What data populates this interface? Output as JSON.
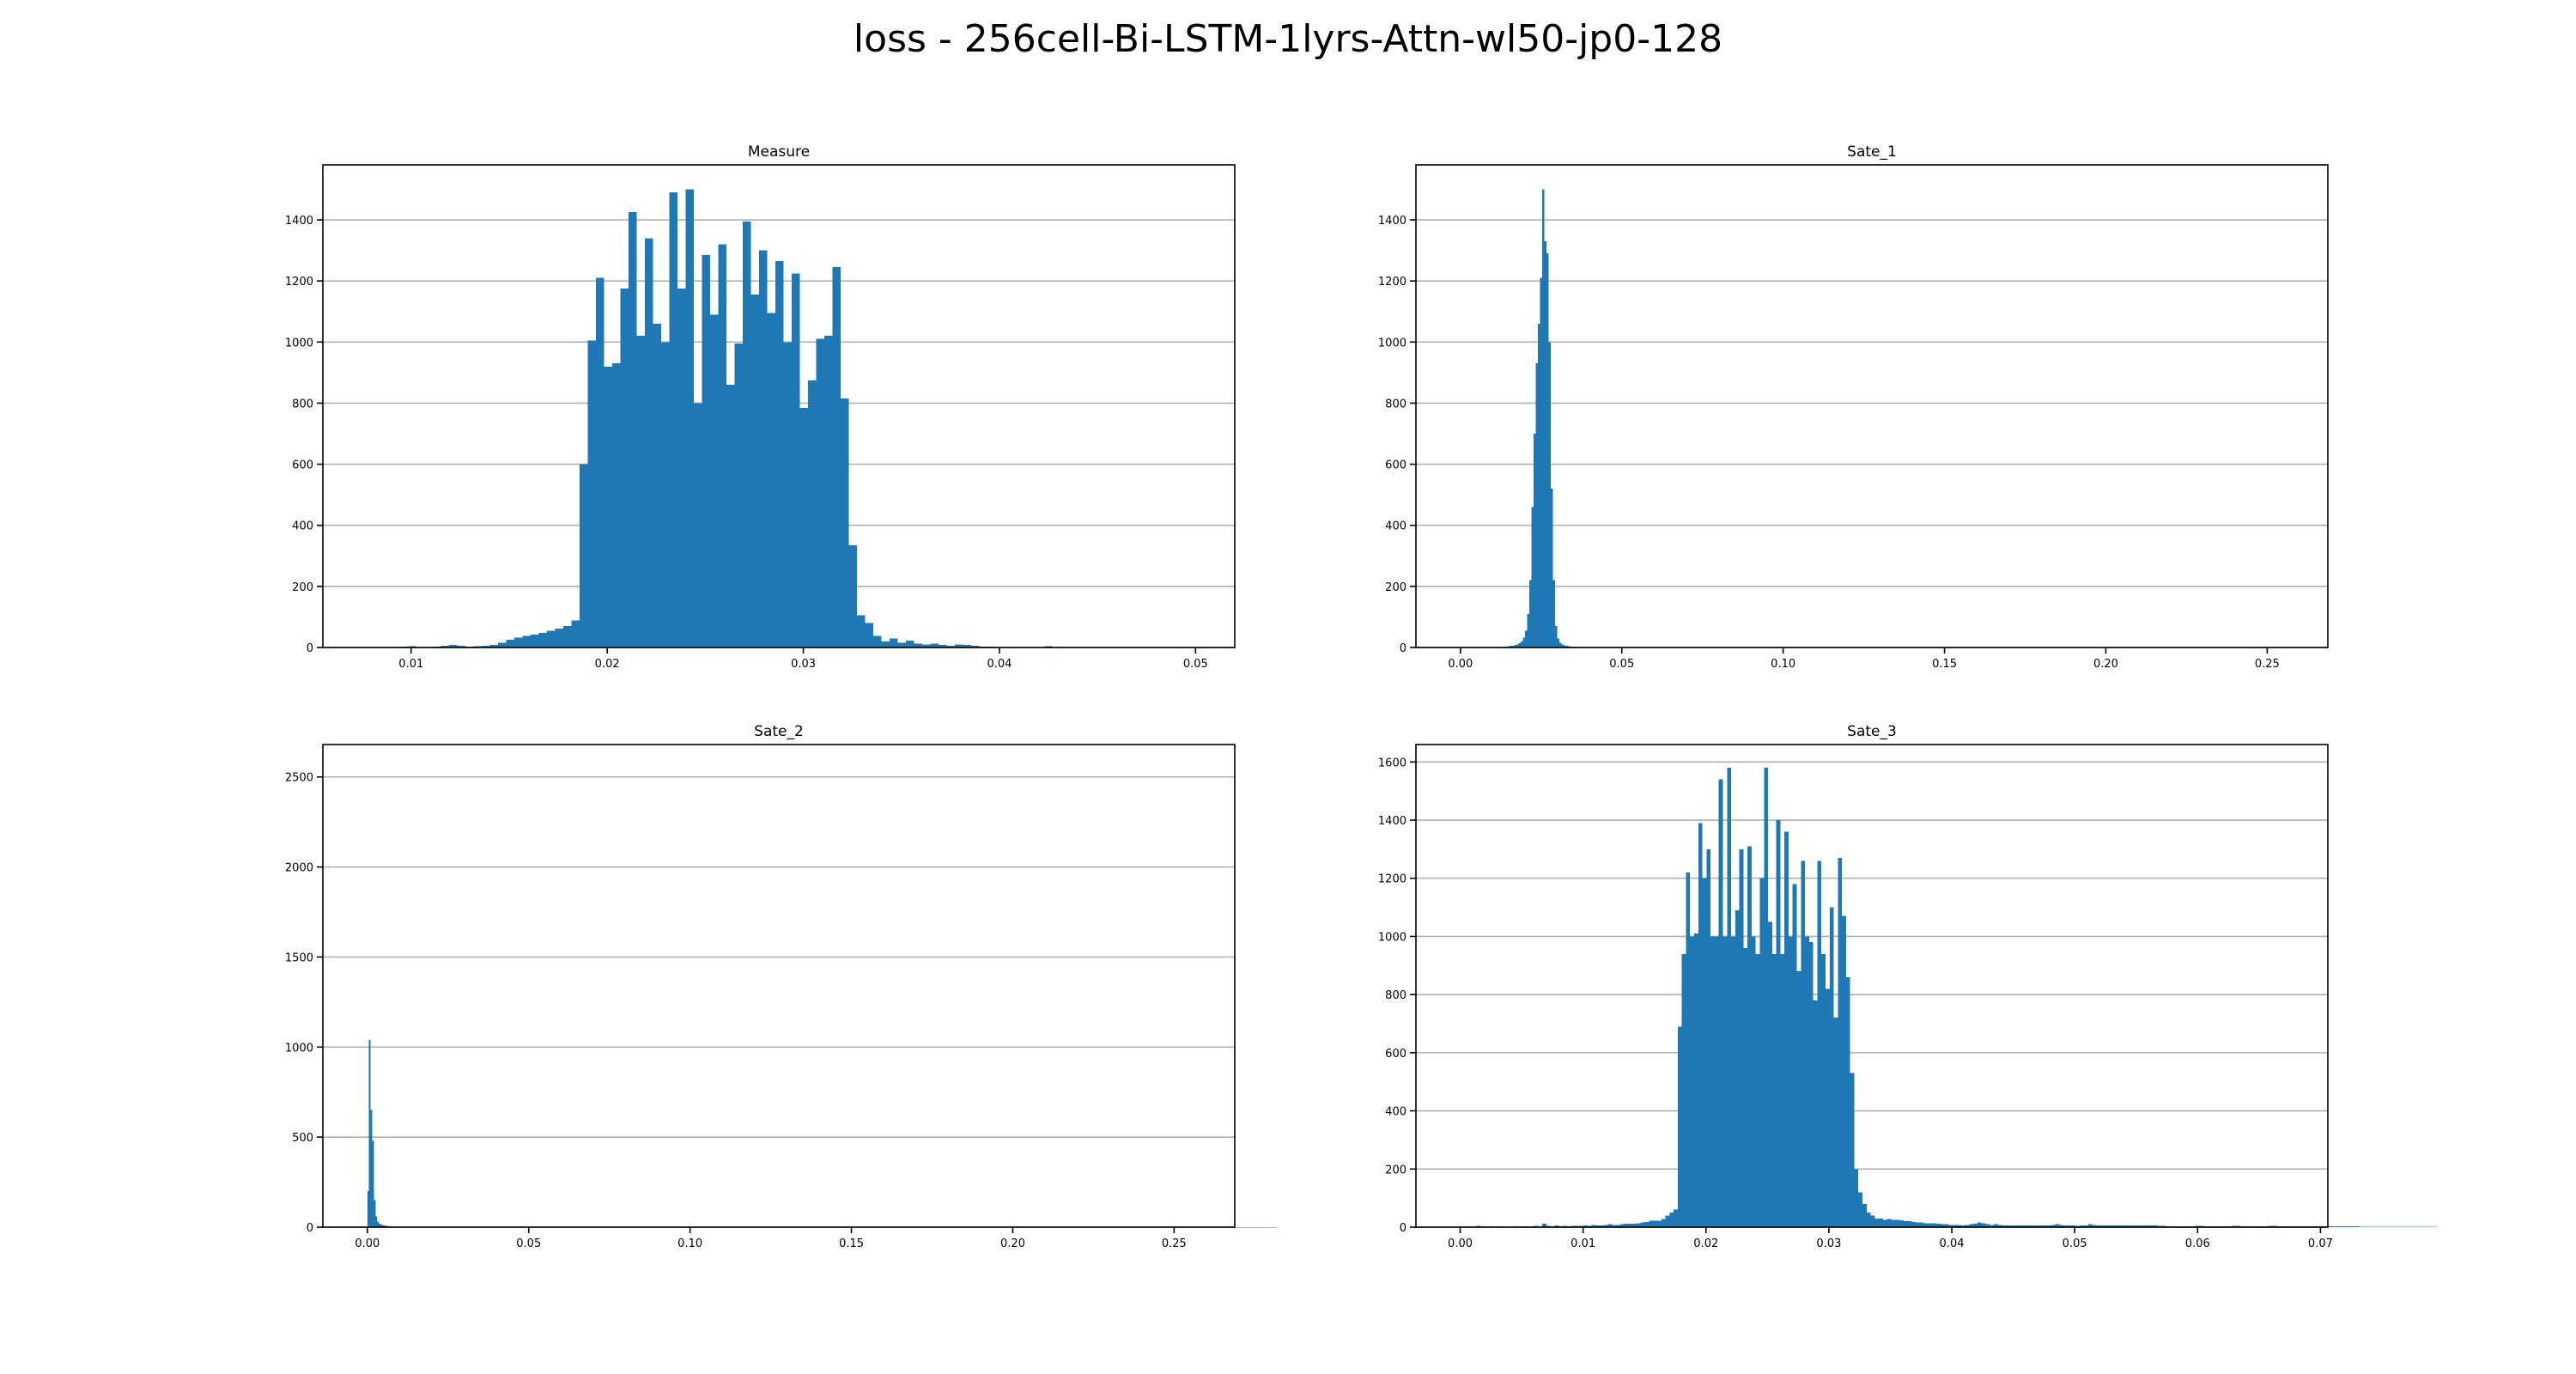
{
  "figure": {
    "title": "loss - 256cell-Bi-LSTM-1lyrs-Attn-wl50-jp0-128",
    "bar_color": "#1f77b4",
    "grid_color": "#b0b0b0"
  },
  "chart_data": [
    {
      "type": "bar",
      "title": "Measure",
      "xlabel": "",
      "ylabel": "",
      "grid": "y",
      "xlim": [
        0.0055,
        0.052
      ],
      "ylim": [
        0,
        1580
      ],
      "xticks": [
        0.01,
        0.02,
        0.03,
        0.04,
        0.05
      ],
      "xtick_labels": [
        "0.01",
        "0.02",
        "0.03",
        "0.04",
        "0.05"
      ],
      "yticks": [
        0,
        200,
        400,
        600,
        800,
        1000,
        1200,
        1400
      ],
      "ytick_labels": [
        "0",
        "200",
        "400",
        "600",
        "800",
        "1000",
        "1200",
        "1400"
      ],
      "bin_start": 0.0082,
      "bin_width": 0.000416,
      "counts": [
        1,
        2,
        2,
        3,
        4,
        2,
        2,
        3,
        5,
        8,
        6,
        3,
        4,
        5,
        8,
        15,
        25,
        32,
        38,
        42,
        48,
        55,
        62,
        70,
        88,
        600,
        1005,
        1210,
        920,
        930,
        1175,
        1425,
        1020,
        1340,
        1060,
        1000,
        1490,
        1175,
        1500,
        800,
        1285,
        1090,
        1320,
        860,
        995,
        1395,
        1155,
        1300,
        1095,
        1265,
        1000,
        1225,
        785,
        875,
        1010,
        1020,
        1245,
        815,
        335,
        105,
        80,
        38,
        20,
        30,
        15,
        22,
        12,
        10,
        12,
        8,
        6,
        10,
        8,
        6,
        3,
        3,
        2,
        2,
        2,
        2,
        1,
        1,
        4,
        2,
        2,
        2,
        1,
        1,
        1,
        1,
        1,
        0,
        0,
        0,
        0,
        0,
        0,
        0,
        0,
        0,
        0,
        0,
        0,
        0,
        0,
        0,
        0,
        0,
        0,
        0,
        0,
        0,
        0
      ]
    },
    {
      "type": "bar",
      "title": "Sate_1",
      "xlabel": "",
      "ylabel": "",
      "grid": "y",
      "xlim": [
        -0.0138,
        0.2688
      ],
      "ylim": [
        0,
        1580
      ],
      "xticks": [
        0.0,
        0.05,
        0.1,
        0.15,
        0.2,
        0.25
      ],
      "xtick_labels": [
        "0.00",
        "0.05",
        "0.10",
        "0.15",
        "0.20",
        "0.25"
      ],
      "yticks": [
        0,
        200,
        400,
        600,
        800,
        1000,
        1200,
        1400
      ],
      "ytick_labels": [
        "0",
        "200",
        "400",
        "600",
        "800",
        "1000",
        "1200",
        "1400"
      ],
      "bin_start": 0.0,
      "bin_width": 0.000665,
      "counts": [
        1,
        1,
        1,
        1,
        1,
        1,
        1,
        1,
        1,
        1,
        1,
        1,
        1,
        1,
        1,
        1,
        2,
        2,
        2,
        2,
        3,
        3,
        4,
        5,
        6,
        8,
        10,
        14,
        20,
        32,
        55,
        110,
        220,
        460,
        700,
        930,
        1060,
        1210,
        1500,
        1330,
        1290,
        1000,
        520,
        220,
        70,
        30,
        15,
        10,
        7,
        5,
        4,
        3,
        3,
        3,
        2,
        2,
        2,
        2,
        2,
        1,
        1,
        1,
        1,
        1,
        1,
        1,
        1,
        1,
        1,
        1,
        1,
        1,
        1,
        1,
        1,
        1,
        1,
        1,
        1,
        1,
        1,
        1,
        1,
        1,
        1,
        1,
        1,
        1,
        1,
        1,
        1,
        1,
        1,
        1,
        1,
        1,
        1,
        1,
        1,
        1,
        1,
        1,
        1,
        1,
        1,
        1,
        1,
        1,
        1,
        1,
        1,
        1,
        1,
        1,
        1,
        1,
        1,
        1,
        1,
        1,
        1,
        1,
        1,
        1,
        1,
        1,
        1,
        1,
        1,
        1,
        1,
        1,
        1,
        1,
        1,
        1,
        1,
        1,
        1,
        1,
        1,
        1,
        1,
        1,
        1,
        1,
        1,
        1,
        1,
        1,
        1,
        1,
        1,
        1,
        1,
        1,
        1,
        1,
        1,
        1,
        1,
        1,
        1,
        1,
        1,
        1,
        1,
        1,
        1,
        1,
        1,
        1,
        1,
        1,
        1,
        1,
        1,
        1,
        1,
        1,
        1,
        1,
        1,
        1,
        1,
        1,
        1,
        1,
        1,
        1,
        1,
        1,
        1,
        1,
        1,
        1,
        1,
        1,
        1,
        1,
        1,
        1,
        1,
        1,
        1,
        1,
        1,
        1,
        1,
        1,
        1,
        1,
        1,
        1,
        1,
        1,
        1,
        1,
        1,
        1,
        1,
        1,
        1,
        1,
        1,
        1,
        1,
        1,
        1,
        1,
        1,
        1,
        1,
        1,
        1,
        1,
        1,
        1,
        1,
        1,
        1,
        1,
        1,
        1,
        1,
        1,
        1,
        1,
        1,
        1,
        1,
        1,
        1,
        1,
        1,
        1,
        1,
        1,
        1,
        1,
        1,
        1,
        1,
        1,
        1,
        1,
        1,
        1,
        1,
        1,
        1,
        1,
        1,
        1,
        1,
        1,
        1,
        1,
        1,
        1,
        1,
        1,
        1,
        1,
        1,
        1,
        1,
        1,
        1,
        1,
        1,
        1,
        1,
        1,
        1,
        1,
        1,
        1,
        1,
        1,
        1,
        1,
        1,
        1,
        1,
        1,
        1,
        1,
        1,
        1,
        1,
        1,
        1,
        1,
        1,
        1,
        1,
        1,
        1,
        1,
        1,
        1,
        1,
        1,
        1,
        1,
        1,
        1,
        1,
        1,
        1,
        1,
        1,
        1,
        1,
        1,
        1,
        1,
        1,
        1,
        1,
        1,
        1,
        1,
        1,
        1,
        1,
        1,
        1,
        1,
        1,
        1,
        1,
        1,
        1,
        1,
        1,
        1,
        1,
        1,
        1,
        1,
        1,
        1,
        1,
        1,
        1,
        1,
        1,
        1,
        1,
        1,
        1,
        1,
        1,
        1,
        1,
        1,
        1,
        1,
        1,
        1,
        1,
        1,
        1,
        1
      ]
    },
    {
      "type": "bar",
      "title": "Sate_2",
      "xlabel": "",
      "ylabel": "",
      "grid": "y",
      "xlim": [
        -0.0138,
        0.2688
      ],
      "ylim": [
        0,
        2680
      ],
      "xticks": [
        0.0,
        0.05,
        0.1,
        0.15,
        0.2,
        0.25
      ],
      "xtick_labels": [
        "0.00",
        "0.05",
        "0.10",
        "0.15",
        "0.20",
        "0.25"
      ],
      "yticks": [
        0,
        500,
        1000,
        1500,
        2000,
        2500
      ],
      "ytick_labels": [
        "0",
        "500",
        "1000",
        "1500",
        "2000",
        "2500"
      ],
      "bin_start": 0.0,
      "bin_width": 0.0005,
      "counts": [
        200,
        1040,
        650,
        480,
        150,
        60,
        30,
        20,
        15,
        12,
        10,
        8,
        6,
        5,
        4,
        4,
        3,
        3,
        2,
        2,
        2,
        2,
        2,
        2,
        1,
        1,
        1,
        1,
        1,
        1,
        1,
        1,
        1,
        1,
        1,
        1,
        1,
        1,
        1,
        1,
        1,
        1,
        1,
        1,
        1,
        1,
        1,
        1,
        1,
        1,
        1,
        1,
        1,
        1,
        1,
        1,
        1,
        1,
        1,
        1,
        1,
        1,
        1,
        1,
        1,
        1,
        1,
        1,
        1,
        1,
        1,
        1,
        1,
        1,
        1,
        1,
        1,
        1,
        1,
        1,
        1,
        1,
        1,
        1,
        1,
        1,
        1,
        1,
        1,
        1,
        1,
        1,
        1,
        1,
        1,
        1,
        1,
        1,
        1,
        1,
        1,
        1,
        1,
        1,
        1,
        1,
        1,
        1,
        1,
        1,
        1,
        1,
        1,
        1,
        1,
        1,
        1,
        1,
        1,
        1,
        1,
        1,
        1,
        1,
        1,
        1,
        1,
        1,
        1,
        1,
        1,
        1,
        1,
        1,
        1,
        1,
        1,
        1,
        1,
        1,
        1,
        1,
        1,
        1,
        1,
        1,
        1,
        1,
        1,
        1,
        1,
        1,
        1,
        1,
        1,
        1,
        1,
        1,
        1,
        1,
        1,
        1,
        1,
        1,
        1,
        1,
        1,
        1,
        1,
        1,
        1,
        1,
        1,
        1,
        1,
        1,
        1,
        1,
        1,
        1,
        1,
        1,
        1,
        1,
        1,
        1,
        1,
        1,
        1,
        1,
        1,
        1,
        1,
        1,
        1,
        1,
        1,
        1,
        1,
        1,
        1,
        1,
        1,
        1,
        1,
        1,
        1,
        1,
        1,
        1,
        1,
        1,
        1,
        1,
        1,
        1,
        1,
        1,
        1,
        1,
        1,
        1,
        1,
        1,
        1,
        1,
        1,
        1,
        1,
        1,
        1,
        1,
        1,
        1,
        1,
        1,
        1,
        1,
        1,
        1,
        1,
        1,
        1,
        1,
        1,
        1,
        1,
        1,
        1,
        1,
        1,
        1,
        1,
        1,
        1,
        1,
        1,
        1,
        1,
        1,
        1,
        1,
        1,
        1,
        1,
        1,
        1,
        1,
        1,
        1,
        1,
        1,
        1,
        1,
        1,
        1,
        1,
        1,
        1,
        1,
        1,
        1,
        1,
        1,
        1,
        1,
        1,
        1,
        1,
        1,
        1,
        1,
        1,
        1,
        1,
        1,
        1,
        1,
        1,
        1,
        1,
        1,
        1,
        1,
        1,
        1,
        1,
        1,
        1,
        1,
        1,
        1,
        1,
        1,
        1,
        1,
        1,
        1,
        1,
        1,
        1,
        1,
        1,
        1,
        1,
        1,
        1,
        1,
        1,
        1,
        1,
        1,
        1,
        1,
        1,
        1,
        1,
        1,
        1,
        1,
        1,
        1,
        1,
        1,
        1,
        1,
        1,
        1,
        1,
        1,
        1,
        1,
        1,
        1,
        1,
        1,
        1,
        1,
        1,
        1,
        1,
        1,
        1,
        1,
        1,
        1,
        1,
        1,
        1,
        1,
        1,
        1,
        1,
        1,
        1,
        1,
        1,
        1,
        1,
        1,
        1,
        1,
        1,
        1,
        1,
        1,
        1,
        1,
        1,
        1,
        1,
        1,
        1,
        1,
        1,
        1,
        1,
        1,
        1,
        1,
        1,
        1,
        1,
        1,
        1,
        1,
        1,
        1,
        1,
        1,
        1,
        1,
        1,
        1,
        1,
        1,
        1,
        1,
        1,
        1,
        1,
        1,
        1,
        1,
        1,
        1,
        1,
        1,
        1,
        1,
        1,
        1,
        1,
        1,
        1,
        1,
        1,
        1,
        1,
        1,
        1,
        1,
        1,
        1,
        1,
        1,
        1,
        1,
        1,
        1,
        1,
        1,
        1,
        1,
        1,
        1,
        1,
        1,
        1,
        1,
        1,
        1,
        1,
        1,
        1,
        1,
        1,
        1,
        1,
        1,
        1,
        1,
        1,
        1,
        1,
        1,
        1,
        1,
        1,
        1,
        1,
        1,
        1,
        1,
        1,
        1,
        1,
        1,
        1,
        1,
        1,
        1,
        1,
        1,
        1,
        1,
        1,
        1,
        1,
        1,
        1,
        1,
        1,
        1,
        1,
        1,
        1,
        1,
        1,
        1,
        1,
        1,
        1,
        1,
        1,
        1,
        1,
        1,
        1,
        1,
        1,
        1,
        1,
        1,
        1,
        1,
        1,
        1,
        1,
        1,
        1,
        1,
        1,
        1,
        1,
        1,
        1,
        1,
        1,
        1,
        1,
        1,
        1,
        1,
        1,
        1,
        1,
        1,
        1,
        1,
        1,
        1,
        1,
        1,
        1,
        1,
        1,
        1,
        1,
        1,
        1,
        1,
        1,
        1
      ]
    },
    {
      "type": "bar",
      "title": "Sate_3",
      "xlabel": "",
      "ylabel": "",
      "grid": "y",
      "xlim": [
        -0.0036,
        0.0706
      ],
      "ylim": [
        0,
        1660
      ],
      "xticks": [
        0.0,
        0.01,
        0.02,
        0.03,
        0.04,
        0.05,
        0.06,
        0.07
      ],
      "xtick_labels": [
        "0.00",
        "0.01",
        "0.02",
        "0.03",
        "0.04",
        "0.05",
        "0.06",
        "0.07"
      ],
      "yticks": [
        0,
        200,
        400,
        600,
        800,
        1000,
        1200,
        1400,
        1600
      ],
      "ytick_labels": [
        "0",
        "200",
        "400",
        "600",
        "800",
        "1000",
        "1200",
        "1400",
        "1600"
      ],
      "bin_start": 0.0,
      "bin_width": 0.000334,
      "counts": [
        2,
        3,
        2,
        2,
        4,
        3,
        2,
        3,
        2,
        3,
        3,
        2,
        2,
        3,
        2,
        3,
        3,
        3,
        4,
        3,
        12,
        4,
        3,
        6,
        3,
        4,
        3,
        5,
        4,
        4,
        6,
        5,
        7,
        6,
        6,
        8,
        10,
        8,
        8,
        10,
        12,
        12,
        12,
        14,
        16,
        18,
        22,
        22,
        22,
        28,
        40,
        50,
        60,
        690,
        940,
        1220,
        1000,
        1010,
        1390,
        1200,
        1300,
        1000,
        1000,
        1540,
        1000,
        1580,
        1000,
        1090,
        1300,
        960,
        1310,
        1000,
        940,
        1200,
        1580,
        1050,
        940,
        1400,
        940,
        1360,
        1000,
        1180,
        880,
        1260,
        1000,
        980,
        780,
        1260,
        940,
        820,
        1100,
        720,
        1270,
        1070,
        860,
        530,
        200,
        120,
        80,
        50,
        40,
        30,
        30,
        25,
        28,
        25,
        25,
        24,
        20,
        20,
        18,
        16,
        16,
        14,
        14,
        14,
        12,
        10,
        10,
        8,
        8,
        8,
        6,
        8,
        10,
        12,
        16,
        14,
        10,
        8,
        10,
        8,
        6,
        6,
        6,
        6,
        6,
        6,
        6,
        6,
        6,
        6,
        6,
        6,
        8,
        10,
        8,
        6,
        6,
        6,
        5,
        6,
        6,
        10,
        8,
        6,
        6,
        6,
        6,
        6,
        6,
        6,
        6,
        6,
        6,
        6,
        6,
        6,
        6,
        6,
        4,
        4,
        3,
        3,
        3,
        3,
        3,
        3,
        3,
        4,
        4,
        3,
        3,
        3,
        3,
        3,
        3,
        3,
        4,
        4,
        3,
        3,
        3,
        3,
        3,
        3,
        3,
        4,
        4,
        3,
        3,
        3,
        3,
        3,
        3,
        3,
        3,
        3,
        3,
        3,
        3,
        3,
        3,
        3,
        3,
        3,
        3,
        3,
        3,
        2,
        2,
        2,
        2,
        2,
        2,
        2,
        2,
        2,
        2,
        2,
        2,
        2,
        2,
        2,
        2,
        2,
        2,
        2
      ]
    }
  ]
}
